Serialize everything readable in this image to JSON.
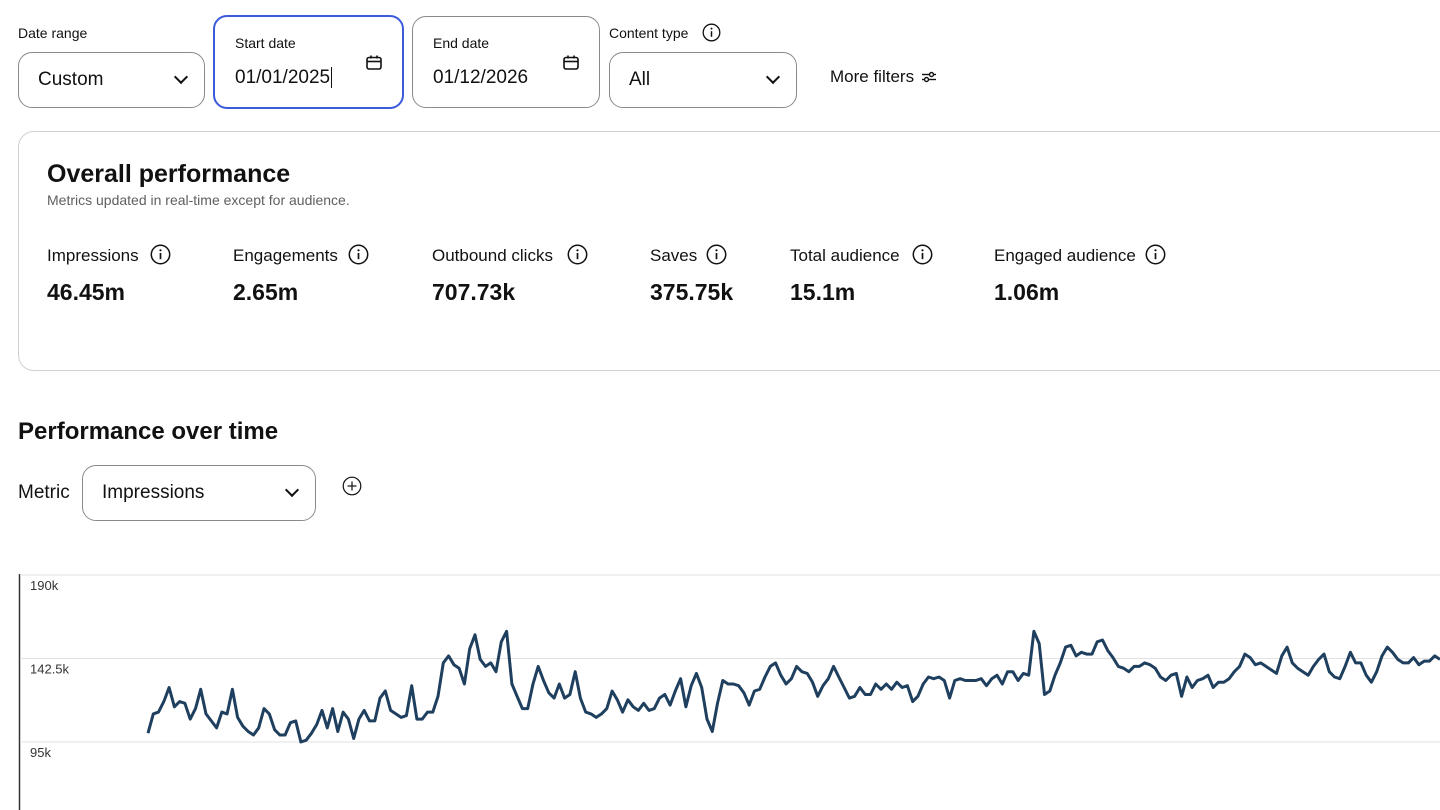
{
  "filters": {
    "date_range": {
      "label": "Date range",
      "value": "Custom"
    },
    "start_date": {
      "label": "Start date",
      "value": "01/01/2025"
    },
    "end_date": {
      "label": "End date",
      "value": "01/12/2026"
    },
    "content_type": {
      "label": "Content type",
      "value": "All"
    },
    "more_filters": "More filters"
  },
  "overall": {
    "title": "Overall performance",
    "subtitle": "Metrics updated in real-time except for audience.",
    "metrics": [
      {
        "label": "Impressions",
        "value": "46.45m"
      },
      {
        "label": "Engagements",
        "value": "2.65m"
      },
      {
        "label": "Outbound clicks",
        "value": "707.73k"
      },
      {
        "label": "Saves",
        "value": "375.75k"
      },
      {
        "label": "Total audience",
        "value": "15.1m"
      },
      {
        "label": "Engaged audience",
        "value": "1.06m"
      }
    ]
  },
  "over_time": {
    "title": "Performance over time",
    "metric_label": "Metric",
    "metric_value": "Impressions"
  },
  "chart_data": {
    "type": "line",
    "y_ticks": [
      "190k",
      "142.5k",
      "95k"
    ],
    "y_tick_values": [
      190000,
      142500,
      95000
    ],
    "ylim": [
      70000,
      190000
    ],
    "grid": true,
    "color": "#1f3f5f",
    "series": [
      {
        "values": [
          100000,
          111000,
          112000,
          118000,
          126000,
          115000,
          118000,
          117000,
          108000,
          114000,
          125000,
          111000,
          107000,
          103000,
          112000,
          111000,
          125000,
          109000,
          104000,
          101000,
          99000,
          103000,
          114000,
          111000,
          102000,
          99000,
          99000,
          106000,
          107000,
          95000,
          96000,
          100000,
          105000,
          113000,
          103000,
          114000,
          101000,
          112000,
          108000,
          97000,
          108000,
          113000,
          107000,
          107000,
          120000,
          124000,
          113000,
          111000,
          109000,
          110000,
          127000,
          108000,
          108000,
          112000,
          112000,
          121000,
          140000,
          144000,
          139000,
          137000,
          128000,
          148000,
          156000,
          142000,
          138000,
          140000,
          135000,
          152000,
          158000,
          128000,
          121000,
          114000,
          114000,
          128000,
          138000,
          130000,
          123000,
          120000,
          128000,
          120000,
          122000,
          135000,
          120000,
          112000,
          111000,
          109000,
          111000,
          114000,
          124000,
          119000,
          112000,
          119000,
          115000,
          113000,
          117000,
          113000,
          114000,
          120000,
          122000,
          116000,
          124000,
          131000,
          115000,
          127000,
          134000,
          126000,
          108000,
          101000,
          117000,
          130000,
          128000,
          128000,
          127000,
          123000,
          116000,
          124000,
          125000,
          132000,
          138000,
          140000,
          133000,
          128000,
          131000,
          138000,
          135000,
          134000,
          129000,
          121000,
          127000,
          131000,
          138000,
          132000,
          126000,
          120000,
          121000,
          126000,
          122000,
          122000,
          128000,
          125000,
          128000,
          125000,
          129000,
          126000,
          127000,
          118000,
          121000,
          128000,
          132000,
          131000,
          132000,
          130000,
          120000,
          130000,
          131000,
          130000,
          130000,
          130000,
          131000,
          127000,
          131000,
          133000,
          128000,
          135000,
          135000,
          130000,
          134000,
          133000,
          158000,
          151000,
          122000,
          124000,
          133000,
          140000,
          149000,
          150000,
          144000,
          146000,
          145000,
          145000,
          152000,
          153000,
          147000,
          143000,
          138000,
          137000,
          135000,
          138000,
          138000,
          140000,
          139000,
          137000,
          132000,
          130000,
          133000,
          134000,
          121000,
          132000,
          126000,
          130000,
          131000,
          133000,
          126000,
          129000,
          129000,
          131000,
          135000,
          138000,
          145000,
          143000,
          139000,
          140000,
          138000,
          136000,
          134000,
          144000,
          149000,
          140000,
          137000,
          135000,
          133000,
          138000,
          142000,
          145000,
          135000,
          132000,
          131000,
          138000,
          146000,
          140000,
          140000,
          133000,
          129000,
          135000,
          144000,
          149000,
          146000,
          142000,
          140000,
          140000,
          143000,
          139000,
          141000,
          141000,
          144000,
          142000
        ]
      }
    ]
  }
}
